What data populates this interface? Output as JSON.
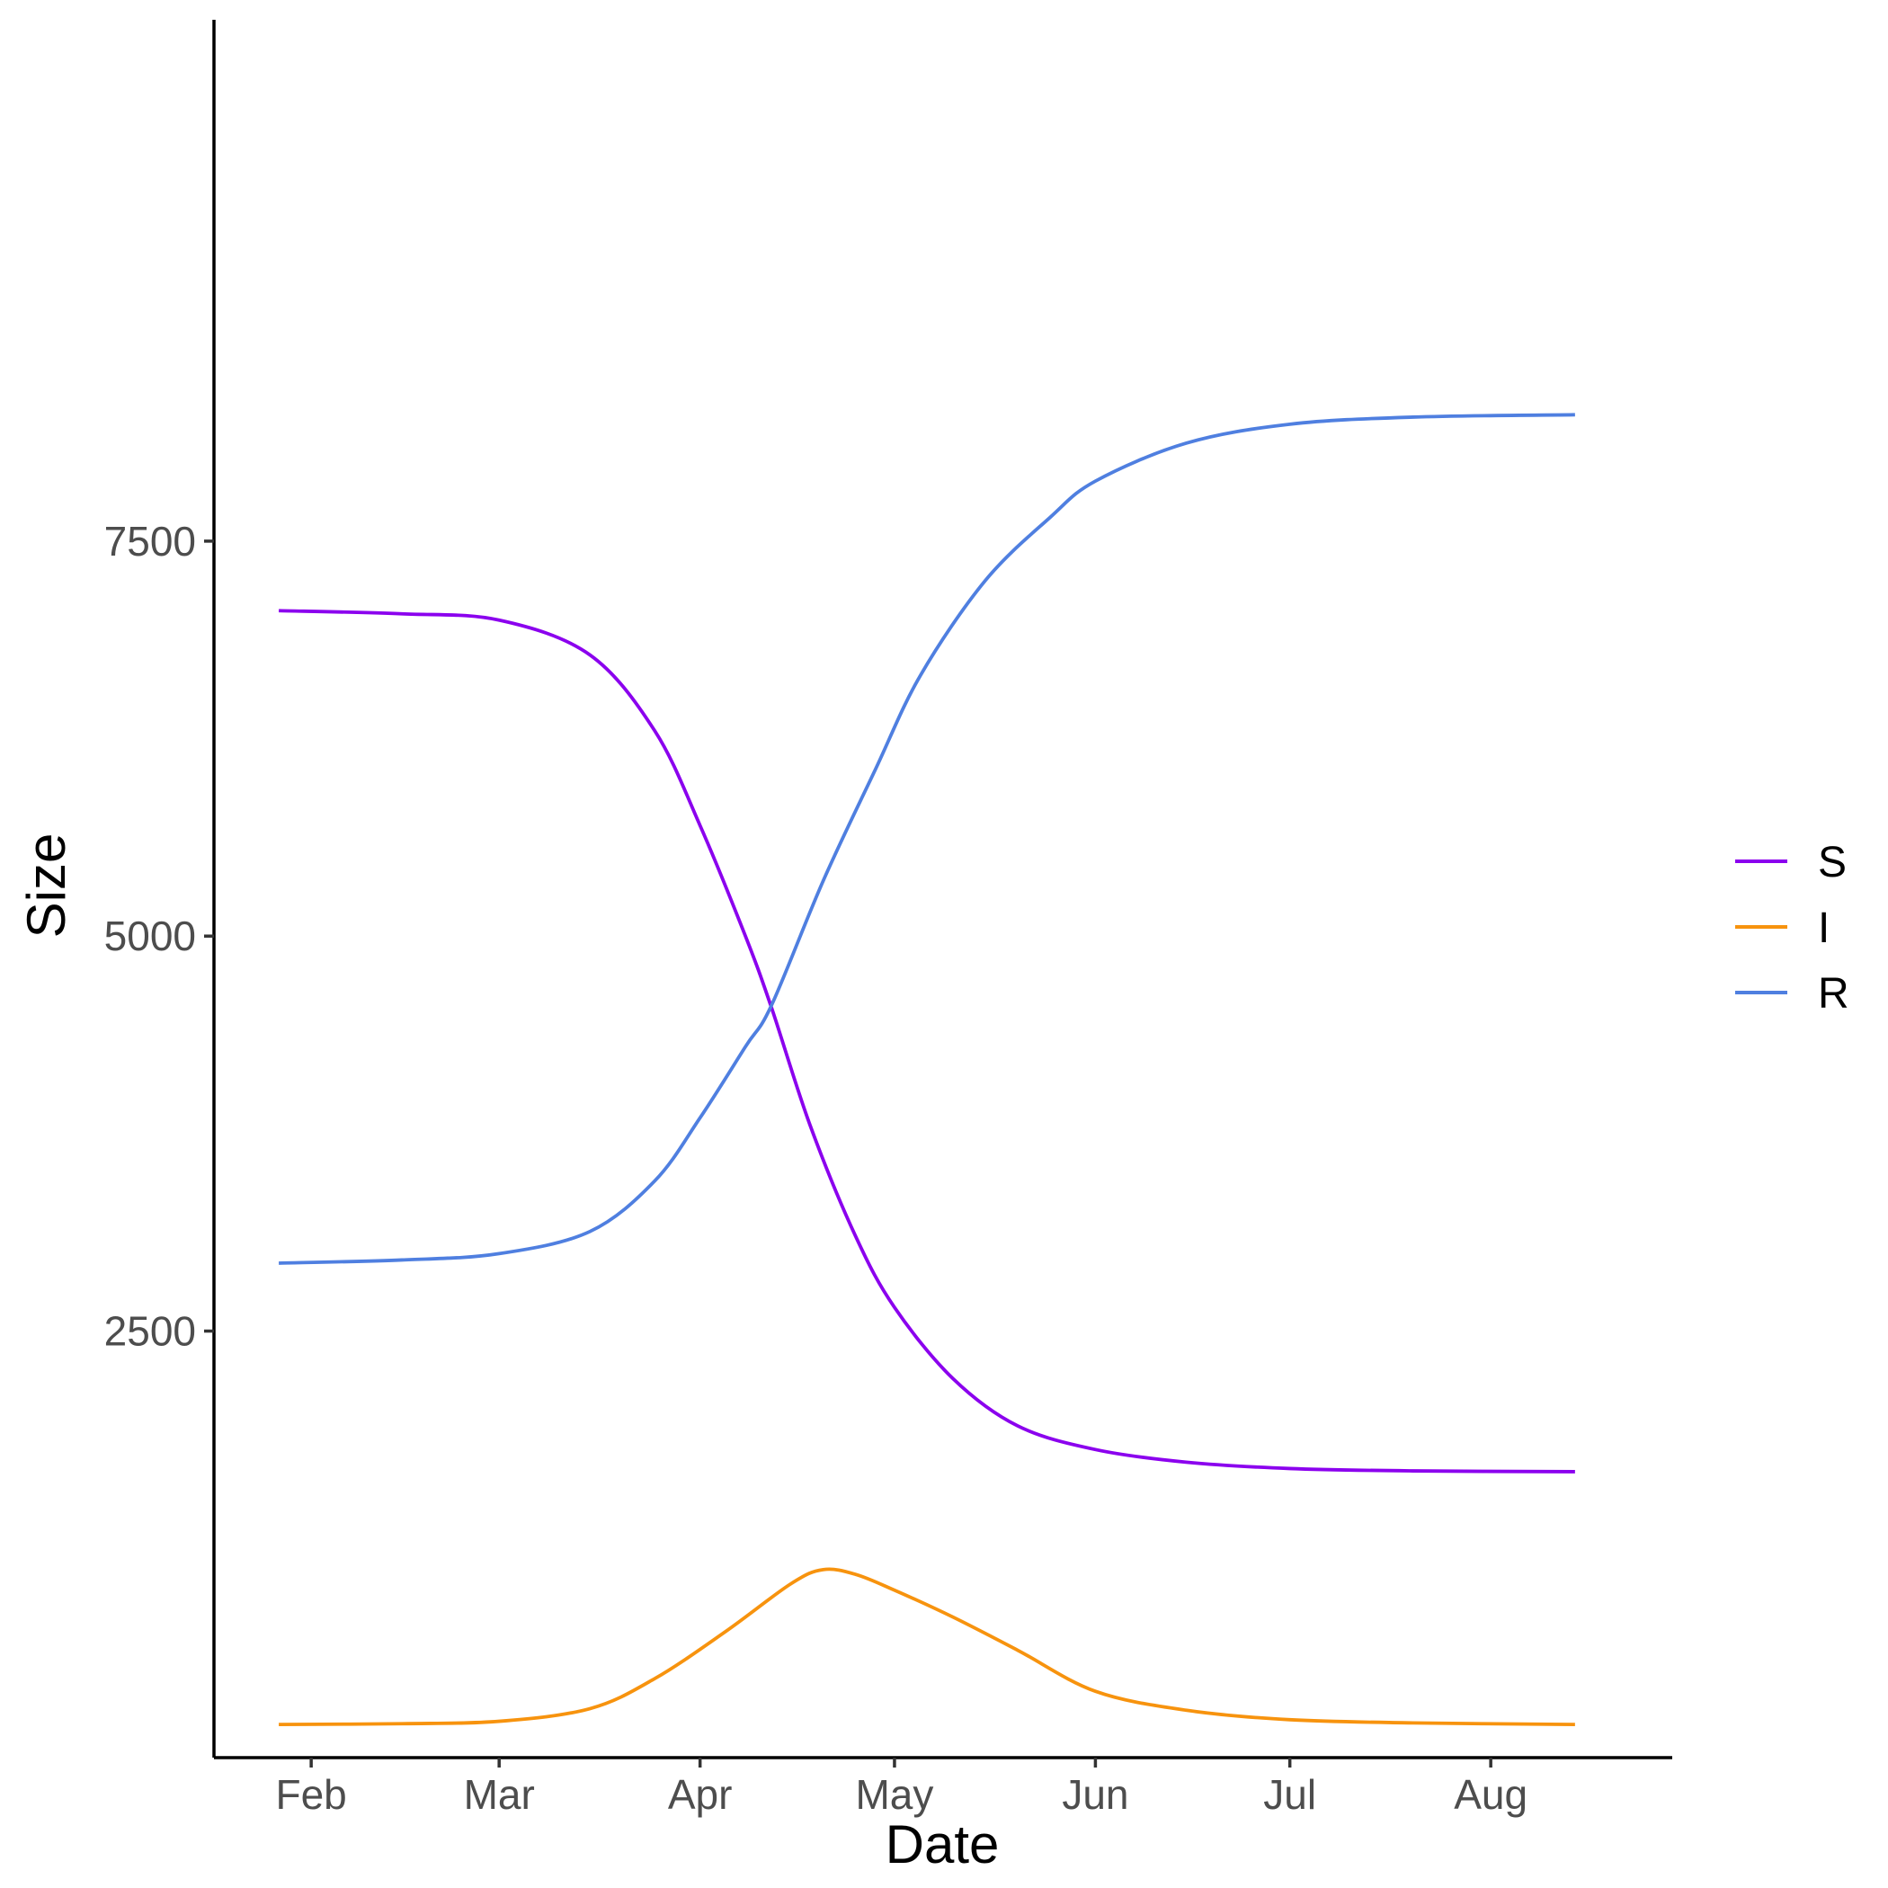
{
  "chart_data": {
    "type": "line",
    "title": "",
    "xlabel": "Date",
    "ylabel": "Size",
    "x_ticks": [
      "Feb",
      "Mar",
      "Apr",
      "May",
      "Jun",
      "Jul",
      "Aug"
    ],
    "x_tick_dates": [
      "2020-02-01",
      "2020-03-01",
      "2020-04-01",
      "2020-05-01",
      "2020-06-01",
      "2020-07-01",
      "2020-08-01"
    ],
    "xlim": [
      "2020-01-17",
      "2020-08-29"
    ],
    "y_ticks": [
      2500,
      5000,
      7500
    ],
    "y_tick_labels": [
      "2500",
      "5000",
      "7500"
    ],
    "ylim": [
      -200,
      10800
    ],
    "grid": false,
    "legend_position": "right",
    "series": [
      {
        "name": "S",
        "color": "#8B00EE",
        "points": [
          [
            "2020-01-27",
            7060
          ],
          [
            "2020-02-15",
            7040
          ],
          [
            "2020-03-01",
            7000
          ],
          [
            "2020-03-15",
            6780
          ],
          [
            "2020-03-25",
            6300
          ],
          [
            "2020-04-01",
            5700
          ],
          [
            "2020-04-08",
            5000
          ],
          [
            "2020-04-12",
            4550
          ],
          [
            "2020-04-18",
            3800
          ],
          [
            "2020-04-25",
            3100
          ],
          [
            "2020-05-01",
            2650
          ],
          [
            "2020-05-10",
            2200
          ],
          [
            "2020-05-20",
            1900
          ],
          [
            "2020-06-01",
            1750
          ],
          [
            "2020-06-15",
            1670
          ],
          [
            "2020-07-01",
            1630
          ],
          [
            "2020-07-20",
            1615
          ],
          [
            "2020-08-14",
            1610
          ]
        ]
      },
      {
        "name": "I",
        "color": "#F7930E",
        "points": [
          [
            "2020-01-27",
            10
          ],
          [
            "2020-02-15",
            15
          ],
          [
            "2020-03-01",
            30
          ],
          [
            "2020-03-15",
            110
          ],
          [
            "2020-03-25",
            300
          ],
          [
            "2020-04-05",
            600
          ],
          [
            "2020-04-15",
            900
          ],
          [
            "2020-04-20",
            990
          ],
          [
            "2020-04-25",
            960
          ],
          [
            "2020-05-01",
            860
          ],
          [
            "2020-05-10",
            690
          ],
          [
            "2020-05-20",
            480
          ],
          [
            "2020-06-01",
            220
          ],
          [
            "2020-06-15",
            100
          ],
          [
            "2020-07-01",
            40
          ],
          [
            "2020-07-20",
            20
          ],
          [
            "2020-08-14",
            10
          ]
        ]
      },
      {
        "name": "R",
        "color": "#4F7FE0",
        "points": [
          [
            "2020-01-27",
            2930
          ],
          [
            "2020-02-15",
            2950
          ],
          [
            "2020-03-01",
            2990
          ],
          [
            "2020-03-15",
            3130
          ],
          [
            "2020-03-25",
            3450
          ],
          [
            "2020-04-01",
            3850
          ],
          [
            "2020-04-08",
            4300
          ],
          [
            "2020-04-12",
            4560
          ],
          [
            "2020-04-20",
            5350
          ],
          [
            "2020-04-28",
            6050
          ],
          [
            "2020-05-05",
            6650
          ],
          [
            "2020-05-15",
            7250
          ],
          [
            "2020-05-25",
            7650
          ],
          [
            "2020-06-01",
            7880
          ],
          [
            "2020-06-15",
            8120
          ],
          [
            "2020-07-01",
            8240
          ],
          [
            "2020-07-20",
            8285
          ],
          [
            "2020-08-14",
            8300
          ]
        ]
      }
    ]
  }
}
